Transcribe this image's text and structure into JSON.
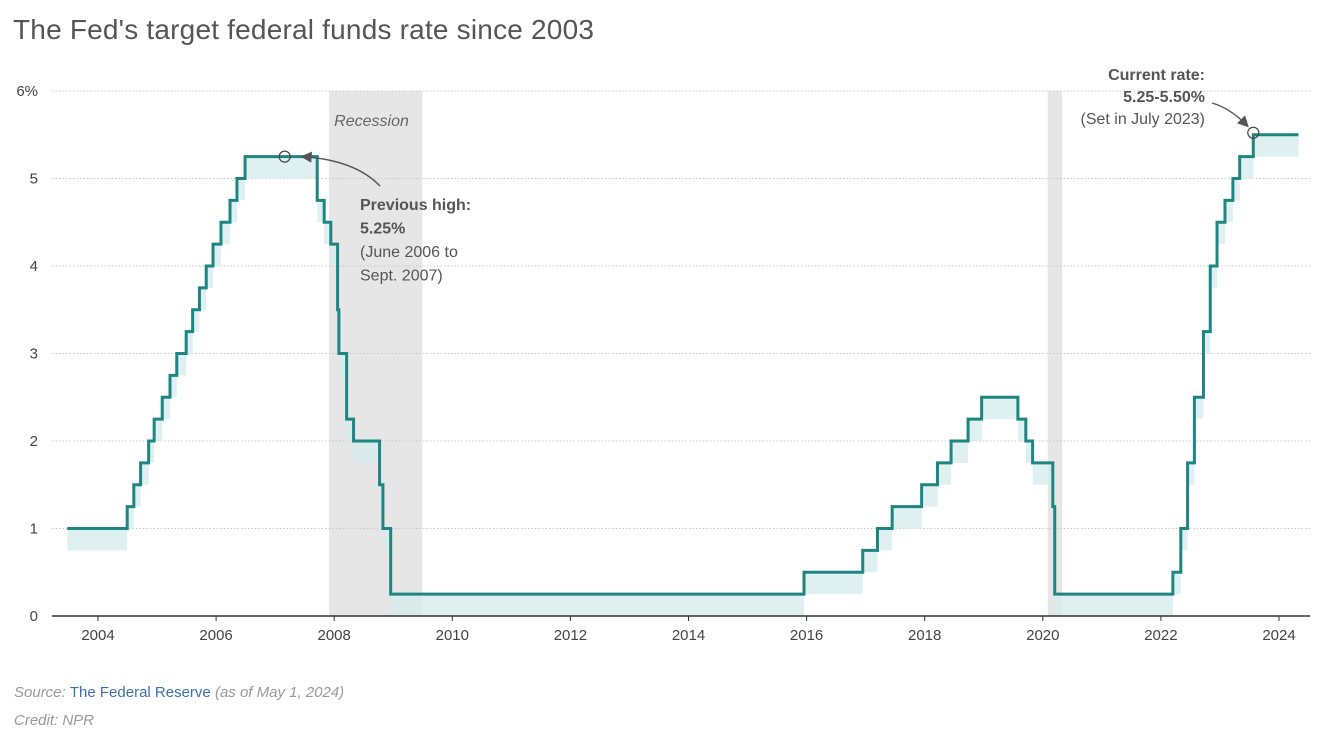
{
  "title": "The Fed's target federal funds rate since 2003",
  "chart_data": {
    "type": "line",
    "line_shape": "step",
    "ylim": [
      0,
      6
    ],
    "y_ticks": [
      {
        "v": 0,
        "label": "0"
      },
      {
        "v": 1,
        "label": "1"
      },
      {
        "v": 2,
        "label": "2"
      },
      {
        "v": 3,
        "label": "3"
      },
      {
        "v": 4,
        "label": "4"
      },
      {
        "v": 5,
        "label": "5"
      },
      {
        "v": 6,
        "label": "6%"
      }
    ],
    "x_ticks": [
      "2004",
      "2006",
      "2008",
      "2010",
      "2012",
      "2014",
      "2016",
      "2018",
      "2020",
      "2022",
      "2024"
    ],
    "grid": true,
    "series": [
      {
        "values": [
          [
            "2003-06-25",
            1.0
          ],
          [
            "2004-06-30",
            1.25
          ],
          [
            "2004-08-10",
            1.5
          ],
          [
            "2004-09-21",
            1.75
          ],
          [
            "2004-11-10",
            2.0
          ],
          [
            "2004-12-14",
            2.25
          ],
          [
            "2005-02-02",
            2.5
          ],
          [
            "2005-03-22",
            2.75
          ],
          [
            "2005-05-03",
            3.0
          ],
          [
            "2005-06-30",
            3.25
          ],
          [
            "2005-08-09",
            3.5
          ],
          [
            "2005-09-20",
            3.75
          ],
          [
            "2005-11-01",
            4.0
          ],
          [
            "2005-12-13",
            4.25
          ],
          [
            "2006-01-31",
            4.5
          ],
          [
            "2006-03-28",
            4.75
          ],
          [
            "2006-05-10",
            5.0
          ],
          [
            "2006-06-29",
            5.25
          ],
          [
            "2007-09-18",
            4.75
          ],
          [
            "2007-10-31",
            4.5
          ],
          [
            "2007-12-11",
            4.25
          ],
          [
            "2008-01-22",
            3.5
          ],
          [
            "2008-01-30",
            3.0
          ],
          [
            "2008-03-18",
            2.25
          ],
          [
            "2008-04-30",
            2.0
          ],
          [
            "2008-10-08",
            1.5
          ],
          [
            "2008-10-29",
            1.0
          ],
          [
            "2008-12-16",
            0.25
          ],
          [
            "2015-12-16",
            0.5
          ],
          [
            "2016-12-14",
            0.75
          ],
          [
            "2017-03-15",
            1.0
          ],
          [
            "2017-06-14",
            1.25
          ],
          [
            "2017-12-13",
            1.5
          ],
          [
            "2018-03-21",
            1.75
          ],
          [
            "2018-06-13",
            2.0
          ],
          [
            "2018-09-26",
            2.25
          ],
          [
            "2018-12-19",
            2.5
          ],
          [
            "2019-07-31",
            2.25
          ],
          [
            "2019-09-18",
            2.0
          ],
          [
            "2019-10-30",
            1.75
          ],
          [
            "2020-03-03",
            1.25
          ],
          [
            "2020-03-15",
            0.25
          ],
          [
            "2022-03-16",
            0.5
          ],
          [
            "2022-05-04",
            1.0
          ],
          [
            "2022-06-15",
            1.75
          ],
          [
            "2022-07-27",
            2.5
          ],
          [
            "2022-09-21",
            3.25
          ],
          [
            "2022-11-02",
            4.0
          ],
          [
            "2022-12-14",
            4.5
          ],
          [
            "2023-02-01",
            4.75
          ],
          [
            "2023-03-22",
            5.0
          ],
          [
            "2023-05-03",
            5.25
          ],
          [
            "2023-07-26",
            5.5
          ],
          [
            "2024-05-01",
            5.5
          ]
        ]
      }
    ],
    "range_band": {
      "lower_offset": 0.25
    },
    "recessions": [
      {
        "start": "2007-12-01",
        "end": "2009-06-30"
      },
      {
        "start": "2020-02-01",
        "end": "2020-04-30"
      }
    ],
    "recession_label": "Recession",
    "annotations": {
      "previous_high": {
        "point": [
          "2007-03-01",
          5.25
        ],
        "lines": [
          {
            "text": "Previous high:",
            "bold": true
          },
          {
            "text": "5.25%",
            "bold": true
          },
          {
            "text": "(June 2006 to",
            "bold": false
          },
          {
            "text": "Sept. 2007)",
            "bold": false
          }
        ]
      },
      "current": {
        "point": [
          "2023-07-26",
          5.5
        ],
        "lines": [
          {
            "text": "Current rate:",
            "bold": true
          },
          {
            "text": "5.25-5.50%",
            "bold": true
          },
          {
            "text": "(Set in July 2023)",
            "bold": false
          }
        ]
      }
    }
  },
  "colors": {
    "line": "#1e8583",
    "band": "#d6ecec",
    "recession": "#e6e6e6",
    "grid": "#c8c8c8",
    "axis": "#333333",
    "label": "#444444",
    "annotation": "#555555"
  },
  "footer": {
    "source_prefix": "Source:",
    "source_link": "The Federal Reserve",
    "source_suffix": "(as of May 1, 2024)",
    "credit": "Credit: NPR"
  }
}
